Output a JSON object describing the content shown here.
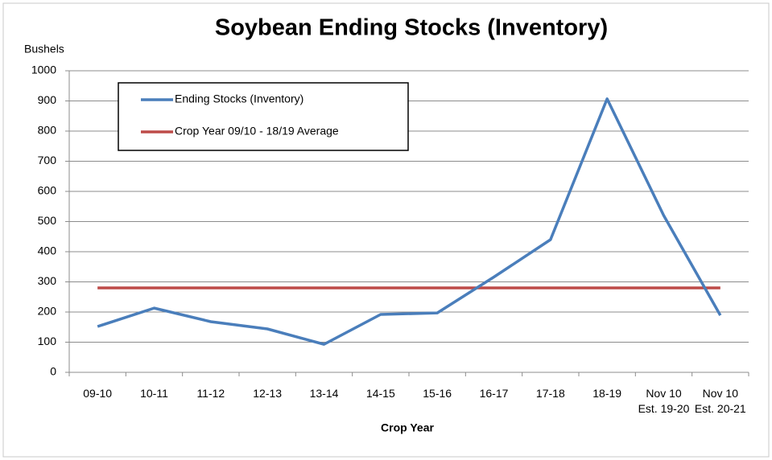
{
  "chart_data": {
    "type": "line",
    "title": "Soybean Ending Stocks (Inventory)",
    "y_label": "Bushels",
    "x_label": "Crop Year",
    "categories": [
      "09-10",
      "10-11",
      "11-12",
      "12-13",
      "13-14",
      "14-15",
      "15-16",
      "16-17",
      "17-18",
      "18-19",
      "Nov 10 Est. 19-20",
      "Nov 10 Est. 20-21"
    ],
    "series": [
      {
        "name": "Ending Stocks (Inventory)",
        "color": "#4a7ebb",
        "values": [
          152,
          213,
          168,
          144,
          93,
          192,
          197,
          316,
          440,
          907,
          520,
          189
        ]
      },
      {
        "name": "Crop Year 09/10 - 18/19 Average",
        "color": "#be4b48",
        "values": [
          280,
          280,
          280,
          280,
          280,
          280,
          280,
          280,
          280,
          280,
          280,
          280
        ]
      }
    ],
    "ylim": [
      0,
      1000
    ],
    "yticks": [
      0,
      100,
      200,
      300,
      400,
      500,
      600,
      700,
      800,
      900,
      1000
    ],
    "grid": true,
    "legend": "top-left"
  }
}
